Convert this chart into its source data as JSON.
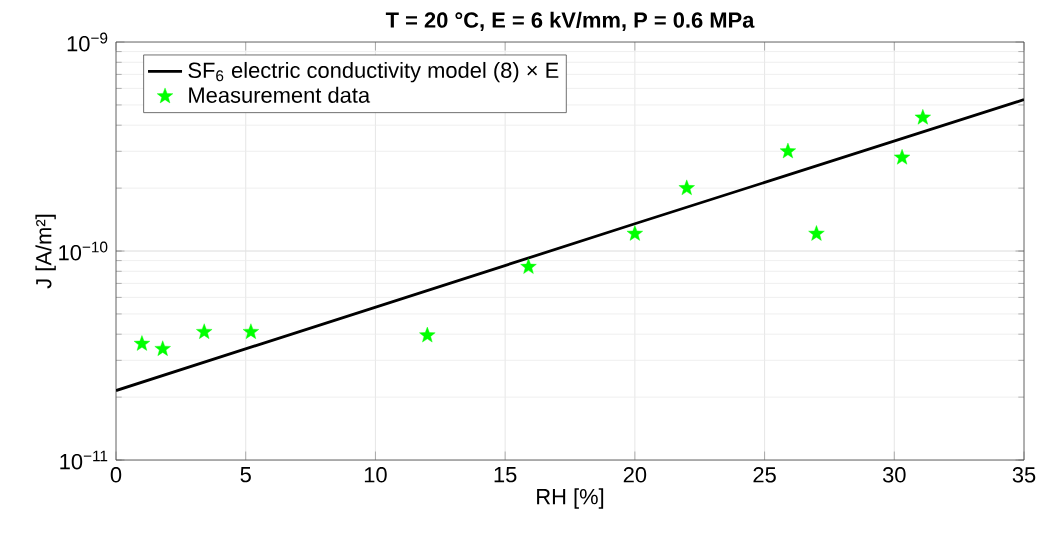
{
  "chart_data": {
    "type": "line",
    "title": "T = 20 °C, E = 6 kV/mm, P = 0.6 MPa",
    "xlabel": "RH [%]",
    "ylabel": "J [A/m²]",
    "log": "y",
    "grid": true,
    "legend": "top left",
    "xlim": [
      0,
      35
    ],
    "xticks": [
      0,
      5,
      10,
      15,
      20,
      25,
      30,
      35
    ],
    "ylim": [
      1e-11,
      1e-09
    ],
    "yticks": [
      {
        "value": 1e-11,
        "label": "10$^{−11}$"
      },
      {
        "value": 1e-10,
        "label": "10$^{−10}$"
      },
      {
        "value": 1e-09,
        "label": "10$^{−9}$"
      }
    ],
    "series": [
      {
        "name": "SF$_{6}$ electric conductivity model (8) × E",
        "color": "#000000",
        "marker": "none",
        "x": [
          0,
          20,
          35
        ],
        "values": [
          2.15e-11,
          1.35e-10,
          5.3e-10
        ]
      },
      {
        "name": "Measurement data",
        "type": "scatter",
        "color": "#00ff00",
        "marker": "star",
        "x": [
          1.0,
          1.8,
          3.4,
          5.2,
          12.0,
          15.9,
          20.0,
          22.0,
          25.9,
          27.0,
          30.3,
          31.1
        ],
        "values": [
          3.6e-11,
          3.4e-11,
          4.1e-11,
          4.1e-11,
          3.95e-11,
          8.4e-11,
          1.21e-10,
          2e-10,
          3e-10,
          1.21e-10,
          2.8e-10,
          4.35e-10
        ]
      }
    ]
  }
}
